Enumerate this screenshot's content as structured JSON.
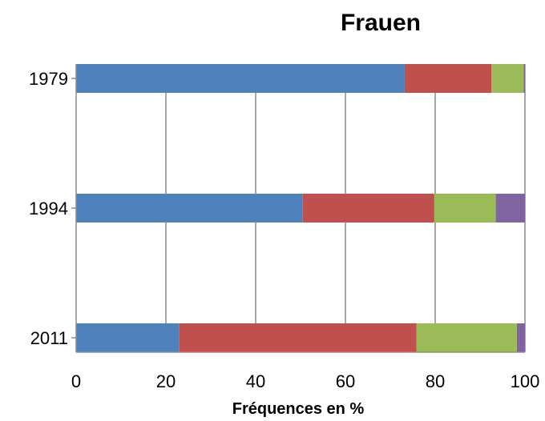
{
  "chart_data": {
    "type": "bar",
    "orientation": "horizontal",
    "stacked": true,
    "title": "Frauen",
    "xlabel": "Fréquences en %",
    "ylabel": "",
    "xlim": [
      0,
      100
    ],
    "x_ticks": [
      "0",
      "20",
      "40",
      "60",
      "80",
      "100"
    ],
    "categories": [
      "1979",
      "1994",
      "2011"
    ],
    "series": [
      {
        "values": [
          73.2,
          50.5,
          23.0
        ],
        "color": "#4f81bd"
      },
      {
        "values": [
          19.3,
          29.3,
          52.8
        ],
        "color": "#c0504d"
      },
      {
        "values": [
          7.2,
          13.7,
          22.4
        ],
        "color": "#9bbb59"
      },
      {
        "values": [
          0.3,
          6.5,
          1.8
        ],
        "color": "#8064a2"
      }
    ],
    "grid": "vertical",
    "legend": "none"
  }
}
